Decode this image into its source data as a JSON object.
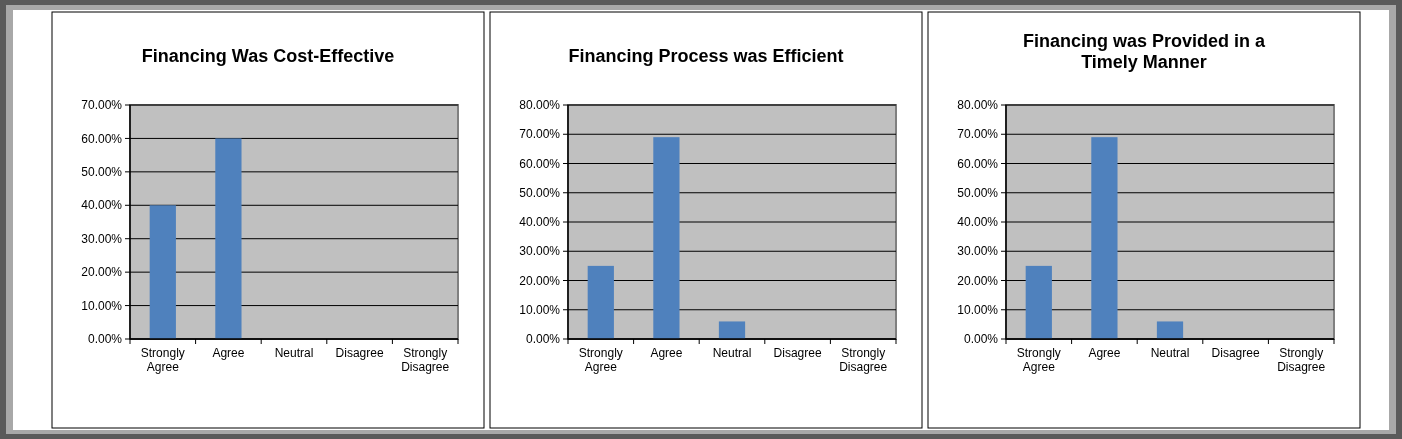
{
  "chart_data": [
    {
      "type": "bar",
      "title": "Financing Was Cost-Effective",
      "categories": [
        "Strongly Agree",
        "Agree",
        "Neutral",
        "Disagree",
        "Strongly Disagree"
      ],
      "values": [
        40,
        60,
        0,
        0,
        0
      ],
      "color": "#4f81bd",
      "ylim": [
        0,
        70
      ],
      "yticks": [
        {
          "value": 0,
          "label": "0.00%"
        },
        {
          "value": 10,
          "label": "10.00%"
        },
        {
          "value": 20,
          "label": "20.00%"
        },
        {
          "value": 30,
          "label": "30.00%"
        },
        {
          "value": 40,
          "label": "40.00%"
        },
        {
          "value": 50,
          "label": "50.00%"
        },
        {
          "value": 60,
          "label": "60.00%"
        },
        {
          "value": 70,
          "label": "70.00%"
        }
      ],
      "grid": "y"
    },
    {
      "type": "bar",
      "title": "Financing Process was Efficient",
      "categories": [
        "Strongly Agree",
        "Agree",
        "Neutral",
        "Disagree",
        "Strongly Disagree"
      ],
      "values": [
        25,
        69,
        6,
        0,
        0
      ],
      "color": "#4f81bd",
      "ylim": [
        0,
        80
      ],
      "yticks": [
        {
          "value": 0,
          "label": "0.00%"
        },
        {
          "value": 10,
          "label": "10.00%"
        },
        {
          "value": 20,
          "label": "20.00%"
        },
        {
          "value": 30,
          "label": "30.00%"
        },
        {
          "value": 40,
          "label": "40.00%"
        },
        {
          "value": 50,
          "label": "50.00%"
        },
        {
          "value": 60,
          "label": "60.00%"
        },
        {
          "value": 70,
          "label": "70.00%"
        },
        {
          "value": 80,
          "label": "80.00%"
        }
      ],
      "grid": "y"
    },
    {
      "type": "bar",
      "title": "Financing was Provided in a Timely Manner",
      "categories": [
        "Strongly Agree",
        "Agree",
        "Neutral",
        "Disagree",
        "Strongly Disagree"
      ],
      "values": [
        25,
        69,
        6,
        0,
        0
      ],
      "color": "#4f81bd",
      "ylim": [
        0,
        80
      ],
      "yticks": [
        {
          "value": 0,
          "label": "0.00%"
        },
        {
          "value": 10,
          "label": "10.00%"
        },
        {
          "value": 20,
          "label": "20.00%"
        },
        {
          "value": 30,
          "label": "30.00%"
        },
        {
          "value": 40,
          "label": "40.00%"
        },
        {
          "value": 50,
          "label": "50.00%"
        },
        {
          "value": 60,
          "label": "60.00%"
        },
        {
          "value": 70,
          "label": "70.00%"
        },
        {
          "value": 80,
          "label": "80.00%"
        }
      ],
      "grid": "y"
    }
  ]
}
